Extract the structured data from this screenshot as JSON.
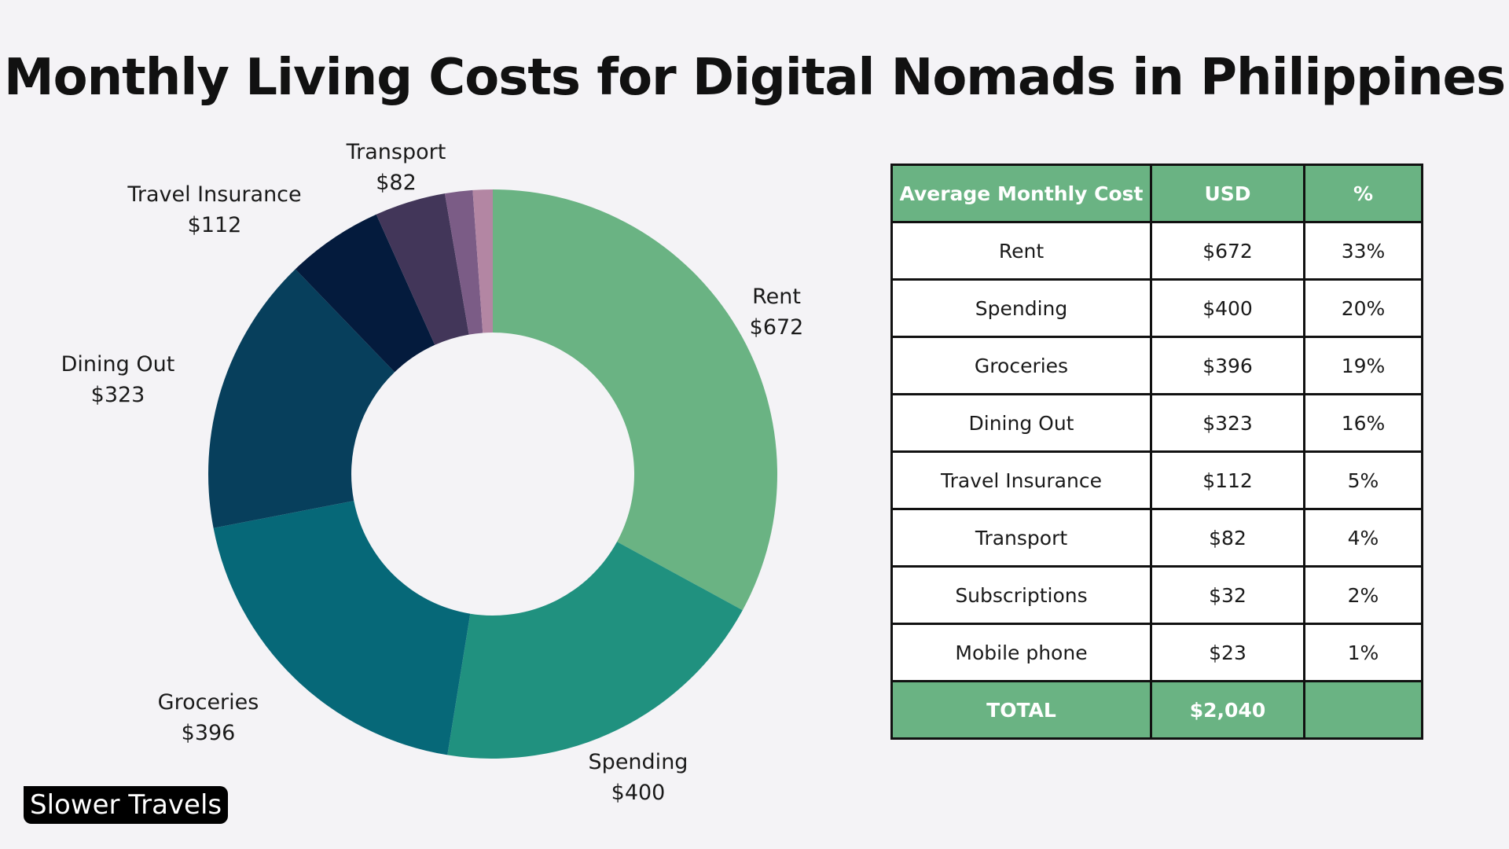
{
  "title": "Monthly Living Costs for Digital Nomads in Philippines",
  "brand": "Slower Travels",
  "chart_data": {
    "type": "pie",
    "style": "donut",
    "categories": [
      "Rent",
      "Spending",
      "Groceries",
      "Dining Out",
      "Travel Insurance",
      "Transport",
      "Subscriptions",
      "Mobile phone"
    ],
    "values": [
      672,
      400,
      396,
      323,
      112,
      82,
      32,
      23
    ],
    "slice_labels": [
      {
        "name": "Rent",
        "value": "$672"
      },
      {
        "name": "Spending",
        "value": "$400"
      },
      {
        "name": "Groceries",
        "value": "$396"
      },
      {
        "name": "Dining Out",
        "value": "$323"
      },
      {
        "name": "Travel Insurance",
        "value": "$112"
      },
      {
        "name": "Transport",
        "value": "$82"
      }
    ],
    "colors": [
      "#6ab383",
      "#20917f",
      "#066878",
      "#073f5c",
      "#041b3d",
      "#423659",
      "#7b5c86",
      "#b386a3"
    ]
  },
  "table": {
    "headers": [
      "Average Monthly Cost",
      "USD",
      "%"
    ],
    "rows": [
      [
        "Rent",
        "$672",
        "33%"
      ],
      [
        "Spending",
        "$400",
        "20%"
      ],
      [
        "Groceries",
        "$396",
        "19%"
      ],
      [
        "Dining Out",
        "$323",
        "16%"
      ],
      [
        "Travel Insurance",
        "$112",
        "5%"
      ],
      [
        "Transport",
        "$82",
        "4%"
      ],
      [
        "Subscriptions",
        "$32",
        "2%"
      ],
      [
        "Mobile phone",
        "$23",
        "1%"
      ]
    ],
    "total": [
      "TOTAL",
      "$2,040",
      ""
    ]
  }
}
